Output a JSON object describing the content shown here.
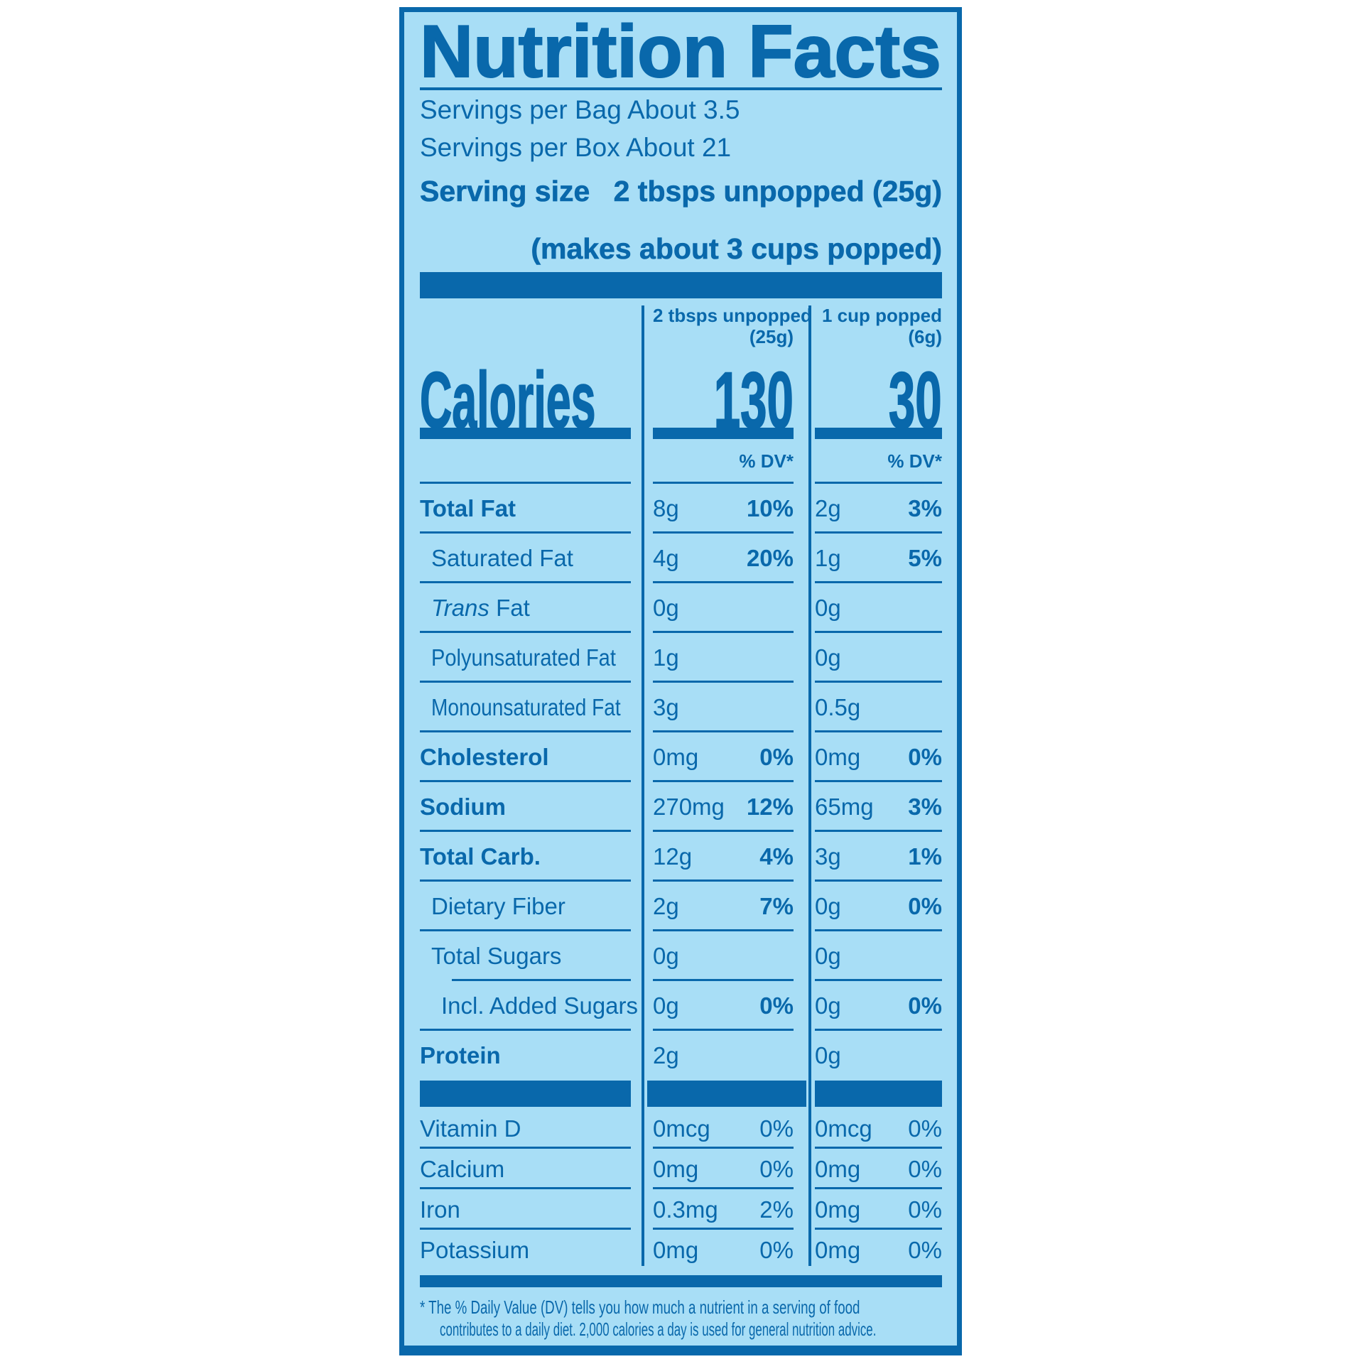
{
  "colors": {
    "dark_blue": "#0968ab",
    "light_blue": "#a8def6",
    "background": "#ffffff"
  },
  "header": {
    "title": "Nutrition Facts",
    "servings_per_bag": "Servings per Bag About 3.5",
    "servings_per_box": "Servings per Box About 21",
    "serving_size_label": "Serving size",
    "serving_size_value": "2 tbsps unpopped (25g)",
    "serving_size_note": "(makes about 3 cups popped)"
  },
  "calories_label": "Calories",
  "columns": [
    {
      "line1": "2 tbsps unpopped",
      "line2": "(25g)",
      "calories": "130",
      "dv_header": "% DV*"
    },
    {
      "line1": "1 cup popped",
      "line2": "(6g)",
      "calories": "30",
      "dv_header": "% DV*"
    }
  ],
  "nutrient_rows": [
    {
      "label": "Total Fat",
      "bold": true,
      "indent": 0,
      "c1": {
        "v": "8g",
        "p": "10%"
      },
      "c2": {
        "v": "2g",
        "p": "3%"
      }
    },
    {
      "label": "Saturated Fat",
      "indent": 1,
      "c1": {
        "v": "4g",
        "p": "20%"
      },
      "c2": {
        "v": "1g",
        "p": "5%"
      }
    },
    {
      "label": "Fat",
      "italic_prefix": "Trans",
      "indent": 1,
      "c1": {
        "v": "0g"
      },
      "c2": {
        "v": "0g"
      }
    },
    {
      "label": "Polyunsaturated Fat",
      "indent": 1,
      "squeeze": 0.88,
      "c1": {
        "v": "1g"
      },
      "c2": {
        "v": "0g"
      }
    },
    {
      "label": "Monounsaturated Fat",
      "indent": 1,
      "squeeze": 0.85,
      "c1": {
        "v": "3g"
      },
      "c2": {
        "v": "0.5g"
      }
    },
    {
      "label": "Cholesterol",
      "bold": true,
      "indent": 0,
      "c1": {
        "v": "0mg",
        "p": "0%"
      },
      "c2": {
        "v": "0mg",
        "p": "0%"
      }
    },
    {
      "label": "Sodium",
      "bold": true,
      "indent": 0,
      "c1": {
        "v": "270mg",
        "p": "12%"
      },
      "c2": {
        "v": "65mg",
        "p": "3%"
      }
    },
    {
      "label": "Total Carb.",
      "bold": true,
      "indent": 0,
      "c1": {
        "v": "12g",
        "p": "4%"
      },
      "c2": {
        "v": "3g",
        "p": "1%"
      }
    },
    {
      "label": "Dietary Fiber",
      "indent": 1,
      "c1": {
        "v": "2g",
        "p": "7%"
      },
      "c2": {
        "v": "0g",
        "p": "0%"
      }
    },
    {
      "label": "Total Sugars",
      "indent": 1,
      "sep": "indent",
      "c1": {
        "v": "0g"
      },
      "c2": {
        "v": "0g"
      }
    },
    {
      "label": "Incl. Added Sugars",
      "indent": 2,
      "c1": {
        "v": "0g",
        "p": "0%"
      },
      "c2": {
        "v": "0g",
        "p": "0%"
      }
    },
    {
      "label": "Protein",
      "bold": true,
      "indent": 0,
      "sep": "none",
      "c1": {
        "v": "2g"
      },
      "c2": {
        "v": "0g"
      }
    }
  ],
  "vitamin_rows": [
    {
      "label": "Vitamin D",
      "c1": {
        "v": "0mcg",
        "p": "0%"
      },
      "c2": {
        "v": "0mcg",
        "p": "0%"
      }
    },
    {
      "label": "Calcium",
      "c1": {
        "v": "0mg",
        "p": "0%"
      },
      "c2": {
        "v": "0mg",
        "p": "0%"
      }
    },
    {
      "label": "Iron",
      "c1": {
        "v": "0.3mg",
        "p": "2%"
      },
      "c2": {
        "v": "0mg",
        "p": "0%"
      }
    },
    {
      "label": "Potassium",
      "sep": "none",
      "c1": {
        "v": "0mg",
        "p": "0%"
      },
      "c2": {
        "v": "0mg",
        "p": "0%"
      }
    }
  ],
  "footnote_line1": "* The % Daily Value (DV) tells you how much a nutrient in a serving of food",
  "footnote_line2": "contributes to a daily diet. 2,000 calories a day is used for general nutrition advice."
}
